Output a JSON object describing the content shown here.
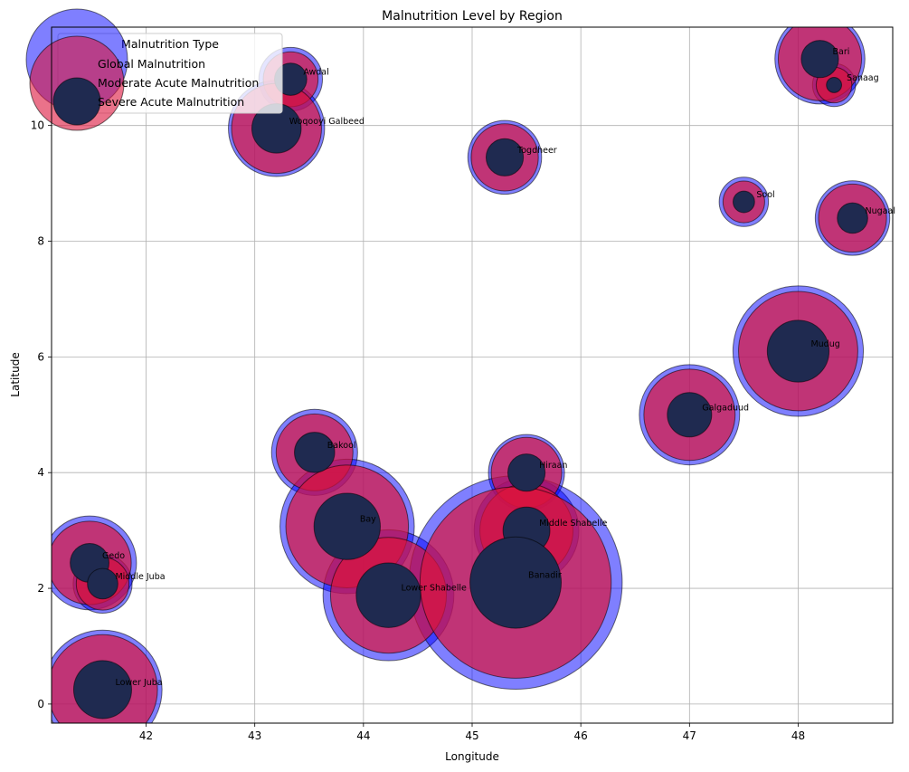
{
  "chart_data": {
    "type": "scatter",
    "title": "Malnutrition Level by Region",
    "xlabel": "Longitude",
    "ylabel": "Latitude",
    "xlim": [
      41.13,
      48.87
    ],
    "ylim": [
      -0.33,
      11.7
    ],
    "xticks": [
      42,
      43,
      44,
      45,
      46,
      47,
      48
    ],
    "yticks": [
      0,
      2,
      4,
      6,
      8,
      10
    ],
    "grid": true,
    "legend": {
      "title": "Malnutrition Type",
      "placement": "upper-left",
      "entries": [
        "Global Malnutrition",
        "Moderate Acute Malnutrition",
        "Severe Acute Malnutrition"
      ]
    },
    "colors": {
      "global": "#0000ff",
      "moderate": "#dc143c",
      "severe": "#1f2a50",
      "edge": "#000000"
    },
    "regions": [
      {
        "name": "Bari",
        "lon": 48.2,
        "lat": 11.15,
        "global": 7,
        "moderate": 6,
        "severe": 1.2
      },
      {
        "name": "Sanaag",
        "lon": 48.33,
        "lat": 10.7,
        "global": 1.6,
        "moderate": 1.1,
        "severe": 0.2
      },
      {
        "name": "Awdal",
        "lon": 43.33,
        "lat": 10.8,
        "global": 3.5,
        "moderate": 2.6,
        "severe": 0.9
      },
      {
        "name": "Woqooyi Galbeed",
        "lon": 43.2,
        "lat": 9.95,
        "global": 8,
        "moderate": 7,
        "severe": 2.1
      },
      {
        "name": "Togdheer",
        "lon": 45.3,
        "lat": 9.45,
        "global": 4.7,
        "moderate": 3.9,
        "severe": 1.2
      },
      {
        "name": "Sool",
        "lon": 47.5,
        "lat": 8.68,
        "global": 2.1,
        "moderate": 1.5,
        "severe": 0.4
      },
      {
        "name": "Nugaal",
        "lon": 48.5,
        "lat": 8.4,
        "global": 4.8,
        "moderate": 4.0,
        "severe": 0.8
      },
      {
        "name": "Mudug",
        "lon": 48.0,
        "lat": 6.1,
        "global": 14.7,
        "moderate": 12.3,
        "severe": 3.3
      },
      {
        "name": "Galgaduud",
        "lon": 47.0,
        "lat": 5.0,
        "global": 8.7,
        "moderate": 7.2,
        "severe": 1.7
      },
      {
        "name": "Bakool",
        "lon": 43.55,
        "lat": 4.35,
        "global": 6.4,
        "moderate": 5.1,
        "severe": 1.4
      },
      {
        "name": "Hiraan",
        "lon": 45.5,
        "lat": 4.0,
        "global": 5.0,
        "moderate": 4.3,
        "severe": 1.2
      },
      {
        "name": "Bay",
        "lon": 43.85,
        "lat": 3.07,
        "global": 15.6,
        "moderate": 13.0,
        "severe": 3.8
      },
      {
        "name": "Middle Shabelle",
        "lon": 45.5,
        "lat": 3.0,
        "global": 9.5,
        "moderate": 7.5,
        "severe": 1.9
      },
      {
        "name": "Gedo",
        "lon": 41.48,
        "lat": 2.44,
        "global": 7.6,
        "moderate": 6.0,
        "severe": 1.3
      },
      {
        "name": "Middle Juba",
        "lon": 41.6,
        "lat": 2.08,
        "global": 3.0,
        "moderate": 2.4,
        "severe": 0.8
      },
      {
        "name": "Lower Shabelle",
        "lon": 44.23,
        "lat": 1.88,
        "global": 14.8,
        "moderate": 11.6,
        "severe": 3.6
      },
      {
        "name": "Banadir",
        "lon": 45.4,
        "lat": 2.1,
        "global": 39.3,
        "moderate": 31.6,
        "severe": 7.2
      },
      {
        "name": "Lower Juba",
        "lon": 41.6,
        "lat": 0.25,
        "global": 12.2,
        "moderate": 10.4,
        "severe": 2.9
      }
    ]
  }
}
